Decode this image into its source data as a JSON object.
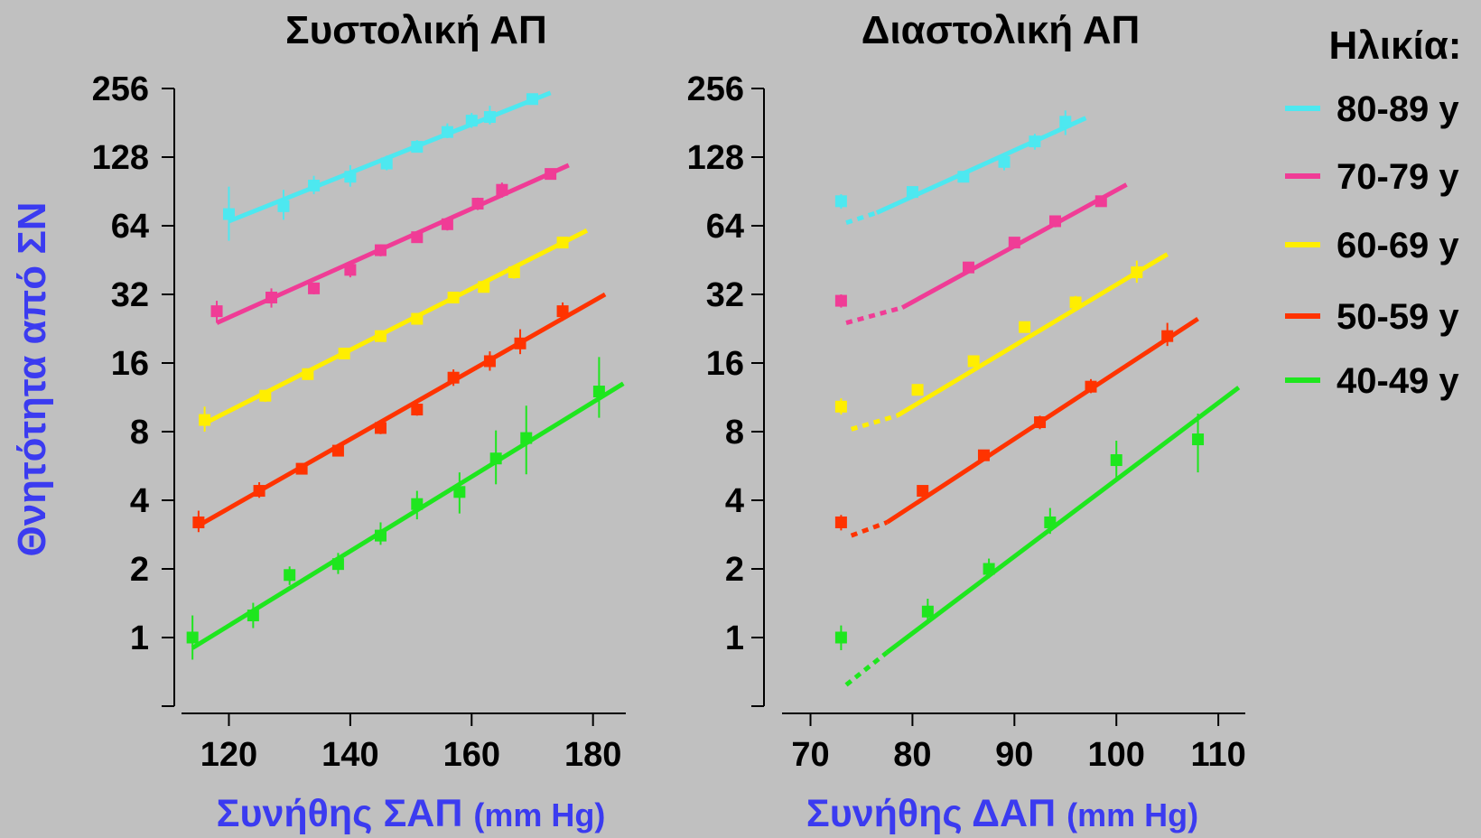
{
  "y_axis_title": "Θνητότητα από ΣΝ",
  "legend": {
    "title": "Ηλικία:",
    "items": [
      {
        "label": "80-89 y",
        "color": "#4de8f0"
      },
      {
        "label": "70-79 y",
        "color": "#f03c96"
      },
      {
        "label": "60-69 y",
        "color": "#ffee00"
      },
      {
        "label": "50-59 y",
        "color": "#ff3300"
      },
      {
        "label": "40-49 y",
        "color": "#1ee61e"
      }
    ]
  },
  "chart_data": [
    {
      "type": "line",
      "title": "Συστολική ΑΠ",
      "xlabel": "Συνήθης ΣΑΠ",
      "xlabel_unit": "(mm Hg)",
      "ylabel": "Θνητότητα από ΣΝ",
      "y_scale": "log2",
      "ylim": [
        0.5,
        256
      ],
      "yticks": [
        1,
        2,
        4,
        8,
        16,
        32,
        64,
        128,
        256
      ],
      "xlim": [
        111,
        186
      ],
      "xticks": [
        120,
        140,
        160,
        180
      ],
      "series": [
        {
          "name": "80-89 y",
          "color": "#4de8f0",
          "x": [
            120,
            129,
            134,
            140,
            146,
            151,
            156,
            160,
            163,
            170
          ],
          "y": [
            72,
            78,
            96,
            105,
            120,
            142,
            165,
            185,
            192,
            230
          ],
          "err_lo": [
            55,
            68,
            88,
            95,
            112,
            134,
            155,
            172,
            178,
            218
          ],
          "err_hi": [
            95,
            92,
            106,
            118,
            130,
            152,
            180,
            200,
            215,
            242
          ],
          "line": [
            {
              "x0": 120,
              "y0": 67,
              "x1": 173,
              "y1": 245
            }
          ]
        },
        {
          "name": "70-79 y",
          "color": "#f03c96",
          "x": [
            118,
            127,
            134,
            140,
            145,
            151,
            156,
            161,
            165,
            173
          ],
          "y": [
            27,
            31,
            34,
            41,
            50,
            57,
            65,
            80,
            92,
            108
          ],
          "err_lo": [
            24,
            28,
            32,
            38,
            47,
            54,
            61,
            75,
            85,
            104
          ],
          "err_hi": [
            30,
            34,
            36,
            44,
            53,
            60,
            69,
            85,
            99,
            112
          ],
          "line": [
            {
              "x0": 118,
              "y0": 24,
              "x1": 176,
              "y1": 118
            }
          ]
        },
        {
          "name": "60-69 y",
          "color": "#ffee00",
          "x": [
            116,
            126,
            133,
            139,
            145,
            151,
            157,
            162,
            167,
            175
          ],
          "y": [
            9,
            11.5,
            14.3,
            17.6,
            21,
            25,
            31,
            34.5,
            40,
            54
          ],
          "err_lo": [
            8,
            10.8,
            13.5,
            16.7,
            20,
            24,
            29.5,
            33,
            37.5,
            51
          ],
          "err_hi": [
            10.3,
            12.2,
            15.1,
            18.5,
            22,
            26,
            32.5,
            36,
            42.5,
            57
          ],
          "line": [
            {
              "x0": 116,
              "y0": 8.7,
              "x1": 179,
              "y1": 61
            }
          ]
        },
        {
          "name": "50-59 y",
          "color": "#ff3300",
          "x": [
            115,
            125,
            132,
            138,
            145,
            151,
            157,
            163,
            168,
            175
          ],
          "y": [
            3.2,
            4.4,
            5.5,
            6.6,
            8.3,
            10,
            13.8,
            16.3,
            19.5,
            27
          ],
          "err_lo": [
            2.9,
            4.1,
            5.2,
            6.3,
            7.8,
            9.4,
            12.7,
            14.8,
            17.5,
            24.5
          ],
          "err_hi": [
            3.6,
            4.8,
            5.8,
            6.9,
            8.8,
            10.7,
            15,
            18,
            22.5,
            29.5
          ],
          "line": [
            {
              "x0": 115,
              "y0": 3.1,
              "x1": 182,
              "y1": 32
            }
          ]
        },
        {
          "name": "40-49 y",
          "color": "#1ee61e",
          "x": [
            114,
            124,
            130,
            138,
            145,
            151,
            158,
            164,
            169,
            181
          ],
          "y": [
            1.0,
            1.25,
            1.88,
            2.1,
            2.8,
            3.85,
            4.35,
            6.1,
            7.5,
            12
          ],
          "err_lo": [
            0.8,
            1.1,
            1.7,
            1.9,
            2.55,
            3.3,
            3.5,
            4.7,
            5.2,
            9.2
          ],
          "err_hi": [
            1.25,
            1.42,
            2.05,
            2.35,
            3.2,
            4.4,
            5.3,
            8.1,
            10.4,
            17
          ],
          "line": [
            {
              "x0": 114,
              "y0": 0.9,
              "x1": 185,
              "y1": 13
            }
          ]
        }
      ]
    },
    {
      "type": "line",
      "title": "Διαστολική ΑΠ",
      "xlabel": "Συνήθης ΔΑΠ",
      "xlabel_unit": "(mm Hg)",
      "ylabel": "Θνητότητα από ΣΝ",
      "y_scale": "log2",
      "ylim": [
        0.5,
        256
      ],
      "yticks": [
        1,
        2,
        4,
        8,
        16,
        32,
        64,
        128,
        256
      ],
      "xlim": [
        66.5,
        113
      ],
      "xticks": [
        70,
        80,
        90,
        100,
        110
      ],
      "series": [
        {
          "name": "80-89 y",
          "color": "#4de8f0",
          "x": [
            73,
            80,
            85,
            89,
            92,
            95
          ],
          "y": [
            82,
            90,
            105,
            122,
            150,
            183
          ],
          "err_lo": [
            76,
            85,
            100,
            112,
            138,
            160
          ],
          "err_hi": [
            88,
            95,
            110,
            132,
            162,
            205
          ],
          "line": [
            {
              "x0": 73.5,
              "y0": 66,
              "x1": 76.5,
              "y1": 73,
              "style": "dashed"
            },
            {
              "x0": 76.5,
              "y0": 73,
              "x1": 97,
              "y1": 190
            }
          ]
        },
        {
          "name": "70-79 y",
          "color": "#f03c96",
          "x": [
            73,
            85.5,
            90,
            94,
            98.5
          ],
          "y": [
            30,
            42,
            54,
            67,
            82
          ],
          "err_lo": [
            28,
            40,
            51,
            63,
            78
          ],
          "err_hi": [
            32,
            44,
            57,
            71,
            86
          ],
          "line": [
            {
              "x0": 73.5,
              "y0": 24,
              "x1": 79,
              "y1": 28,
              "style": "dashed"
            },
            {
              "x0": 79,
              "y0": 28,
              "x1": 101,
              "y1": 97
            }
          ]
        },
        {
          "name": "60-69 y",
          "color": "#ffee00",
          "x": [
            73,
            80.5,
            86,
            91,
            96,
            102
          ],
          "y": [
            10.3,
            12.2,
            16.3,
            23,
            29.5,
            40
          ],
          "err_lo": [
            9.5,
            11.6,
            15.5,
            22,
            27.5,
            36
          ],
          "err_hi": [
            11.2,
            12.8,
            17.2,
            24,
            31.5,
            45
          ],
          "line": [
            {
              "x0": 74,
              "y0": 8.2,
              "x1": 78.5,
              "y1": 9.4,
              "style": "dashed"
            },
            {
              "x0": 78.5,
              "y0": 9.4,
              "x1": 105,
              "y1": 48
            }
          ]
        },
        {
          "name": "50-59 y",
          "color": "#ff3300",
          "x": [
            73,
            81,
            87,
            92.5,
            97.5,
            105
          ],
          "y": [
            3.2,
            4.4,
            6.3,
            8.8,
            12.6,
            21
          ],
          "err_lo": [
            2.95,
            4.15,
            6.0,
            8.2,
            11.8,
            19
          ],
          "err_hi": [
            3.45,
            4.65,
            6.6,
            9.4,
            13.6,
            24
          ],
          "line": [
            {
              "x0": 74,
              "y0": 2.8,
              "x1": 77.5,
              "y1": 3.2,
              "style": "dashed"
            },
            {
              "x0": 77.5,
              "y0": 3.2,
              "x1": 108,
              "y1": 25
            }
          ]
        },
        {
          "name": "40-49 y",
          "color": "#1ee61e",
          "x": [
            73,
            81.5,
            87.5,
            93.5,
            100,
            108
          ],
          "y": [
            1.0,
            1.3,
            2.0,
            3.2,
            6.0,
            7.4
          ],
          "err_lo": [
            0.88,
            1.16,
            1.82,
            2.85,
            5.0,
            5.3
          ],
          "err_hi": [
            1.13,
            1.48,
            2.22,
            3.7,
            7.3,
            9.6
          ],
          "line": [
            {
              "x0": 73.5,
              "y0": 0.62,
              "x1": 77.5,
              "y1": 0.86,
              "style": "dashed"
            },
            {
              "x0": 77.5,
              "y0": 0.86,
              "x1": 112,
              "y1": 12.5
            }
          ]
        }
      ]
    }
  ]
}
